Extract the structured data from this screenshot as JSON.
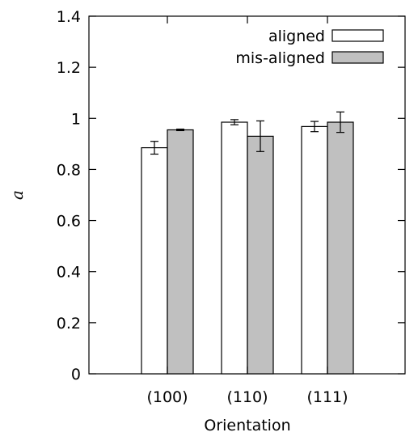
{
  "chart_data": {
    "type": "bar",
    "categories": [
      "(100)",
      "(110)",
      "(111)"
    ],
    "series": [
      {
        "name": "aligned",
        "values": [
          0.885,
          0.985,
          0.968
        ],
        "errors": [
          0.025,
          0.01,
          0.02
        ],
        "color": "#ffffff"
      },
      {
        "name": "mis-aligned",
        "values": [
          0.955,
          0.93,
          0.985
        ],
        "errors": [
          0.003,
          0.06,
          0.04
        ],
        "color": "#c0c0c0"
      }
    ],
    "xlabel": "Orientation",
    "ylabel": "a",
    "ylim": [
      0,
      1.4
    ],
    "yticks": [
      "0",
      "0.2",
      "0.4",
      "0.6",
      "0.8",
      "1",
      "1.2",
      "1.4"
    ],
    "grid": false,
    "legend": "top-right"
  }
}
